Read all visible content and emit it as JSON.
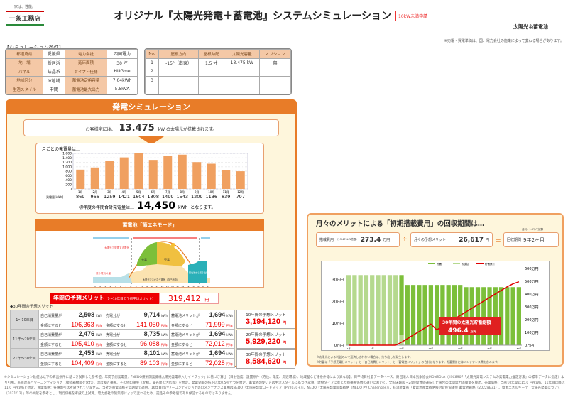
{
  "logo": {
    "tagline": "家は、性能。",
    "name": "一条工務店",
    "colors": [
      "#cc0000",
      "#2a8a3a"
    ]
  },
  "header": {
    "title": "オリジナル『太陽光発電＋蓄電池』システムシミュレーション",
    "badge": "10kW未満申請",
    "subtitle": "太陽光＆蓄電池",
    "note": "※売電・買電単価は、国、電力会社の施策によって変わる場合があります。"
  },
  "conditions": {
    "heading": "【シミュレーション条件】",
    "rows": [
      [
        "都道府県",
        "愛媛県",
        "電力会社",
        "四国電力"
      ],
      [
        "地　域",
        "新居浜",
        "延床面積",
        "30 坪"
      ],
      [
        "パネル",
        "結晶系",
        "タイプ・仕様",
        "HUGme"
      ],
      [
        "地域区分",
        "Ⅳ地域",
        "蓄電池定格容量",
        "7.04kWh"
      ],
      [
        "生活スタイル",
        "中間",
        "蓄電池最大出力",
        "5.5kVA"
      ]
    ],
    "roof_headers": [
      "No.",
      "屋根方向",
      "屋根勾配",
      "太陽光容量",
      "オプション"
    ],
    "roof_rows": [
      [
        "1",
        "-15°（南東）",
        "1.5 寸",
        "13.475 kW",
        "無"
      ],
      [
        "2",
        "",
        "",
        "",
        ""
      ],
      [
        "3",
        "",
        "",
        "",
        ""
      ],
      [
        "",
        "",
        "",
        "",
        ""
      ]
    ]
  },
  "sim": {
    "title": "発電シミュレーション",
    "cust_pre": "お客様宅には、",
    "capacity": "13.475",
    "cust_unit": "kW",
    "cust_post": "の太陽光が搭載されます。",
    "annual_pre": "初年度の年間合計発電量は…",
    "annual": "14,450",
    "annual_unit": "kWh",
    "annual_post": "となります。"
  },
  "chart_data": {
    "type": "bar",
    "title": "月ごとの発電量は…",
    "row_label": "発電量[kWh]",
    "categories": [
      "1月",
      "2月",
      "3月",
      "4月",
      "5月",
      "6月",
      "7月",
      "8月",
      "9月",
      "10月",
      "11月",
      "12月"
    ],
    "values": [
      869,
      966,
      1259,
      1421,
      1604,
      1308,
      1499,
      1543,
      1209,
      1136,
      839,
      797
    ],
    "ylim": [
      0,
      1600
    ],
    "yticks": [
      "0",
      "200",
      "400",
      "600",
      "800",
      "1,000",
      "1,200",
      "1,400",
      "1,600"
    ],
    "color": "#f0a060"
  },
  "battery": {
    "title": "蓄電池「節エネモード」",
    "labels": {
      "solar": "太陽光で発電する電気",
      "charge": "充電",
      "sell": "売電",
      "use": "使う電気の量",
      "day": "太陽光でまかなう電気（自己消費）",
      "night": "蓄電池から使う電気"
    },
    "hours": [
      "1",
      "2",
      "3",
      "4",
      "5",
      "6",
      "7",
      "8",
      "9",
      "10",
      "11",
      "12",
      "13",
      "14",
      "15",
      "16",
      "17",
      "18",
      "19",
      "20",
      "21",
      "22",
      "23"
    ]
  },
  "merit": {
    "label": "年間の予想メリット",
    "label_note": "（1〜10年目の予想平均メリット）",
    "value": "319,412",
    "unit": "円",
    "section": "◆30年間の予想メリット",
    "self_label": "自己消費量が",
    "sell_label": "売電分が",
    "batt_label": "蓄電池メリットが",
    "yen_label": "金額にすると",
    "kwh": "kWh",
    "yen_unit": "円/年",
    "periods": [
      {
        "name": "1〜10年目",
        "self": "2,508",
        "self_yen": "106,363",
        "sell": "9,714",
        "sell_yen": "141,050",
        "batt": "1,694",
        "batt_yen": "71,999",
        "total_label": "10年間の予想メリット",
        "total": "3,194,120"
      },
      {
        "name": "11年〜20年目",
        "self": "2,476",
        "self_yen": "105,410",
        "sell": "8,735",
        "sell_yen": "96,088",
        "batt": "1,694",
        "batt_yen": "72,012",
        "total_label": "20年間の予想メリット",
        "total": "5,929,220"
      },
      {
        "name": "21年〜30年目",
        "self": "2,453",
        "self_yen": "104,409",
        "sell": "8,101",
        "sell_yen": "89,103",
        "batt": "1,694",
        "batt_yen": "72,028",
        "total_label": "30年間の予想メリット",
        "total": "8,584,620"
      }
    ],
    "total_unit": "円"
  },
  "payback": {
    "title": "月々のメリットによる「初期搭載費用」の回収期間は…",
    "cost_label": "搭載費用",
    "cost_note": "（13.475kW搭載）",
    "cost": "273.4",
    "cost_unit": "万円",
    "plus": "÷",
    "monthly_label": "月々の予想メリット",
    "monthly": "26,617",
    "monthly_unit": "円",
    "eq": "＝",
    "period_label": "回収期間",
    "period": "9年2ヶ月",
    "small_note": "金利：1.0％で試算",
    "chart_data": {
      "type": "bar+line",
      "legend": [
        "貯蓄",
        "お支払",
        "貯蓄累計"
      ],
      "colors": [
        "#7cbf3a",
        "#b5d98e",
        "#e00000"
      ],
      "x": [
        1,
        2,
        3,
        4,
        5,
        6,
        7,
        8,
        9,
        10,
        11,
        12,
        13,
        14,
        15,
        16,
        17,
        18,
        19,
        20,
        21,
        22,
        23,
        24,
        25,
        26,
        27,
        28,
        29,
        30
      ],
      "xticks": [
        "1年",
        "5年",
        "10年",
        "15年",
        "20年",
        "25年",
        "30年"
      ],
      "savings": [
        0,
        0,
        0,
        0,
        0,
        0,
        0,
        0,
        0,
        27.5,
        27.5,
        27.5,
        27.5,
        27.5,
        27.5,
        27.5,
        27.5,
        27.5,
        27.5,
        27.5,
        26.5,
        26.5,
        26.5,
        26.5,
        26.5,
        26.5,
        26.5,
        26.5,
        26.5,
        26.5
      ],
      "payment": [
        32,
        32,
        32,
        32,
        32,
        32,
        32,
        32,
        32,
        4.5,
        0,
        0,
        0,
        0,
        0,
        0,
        0,
        0,
        0,
        0,
        0,
        0,
        0,
        0,
        0,
        0,
        0,
        0,
        0,
        0
      ],
      "cumulative": [
        0,
        0,
        0,
        0,
        0,
        0,
        0,
        0,
        0,
        23,
        51,
        79,
        107,
        135,
        165,
        120,
        148,
        176,
        205,
        233,
        261,
        289,
        317,
        345,
        373,
        401,
        429,
        457,
        480,
        496.4
      ],
      "ylim_left": [
        0,
        35
      ],
      "yticks_left": [
        "0万円",
        "10万円",
        "20万円",
        "30万円"
      ],
      "ylim_right": [
        0,
        600
      ],
      "yticks_right": [
        "0万円",
        "100万円",
        "200万円",
        "300万円",
        "400万円",
        "500万円",
        "600万円"
      ],
      "callout": {
        "label": "30年間の太陽光貯蓄総額",
        "value": "496.4",
        "unit": "万円"
      }
    },
    "notes": [
      "※太陽光による利益のみで返済しきれない場合は、持ち出しが発生します。",
      "※貯蓄は「予想売電分メリット」と「自己消費分メリット」と「蓄電池メリット」の合計になります。貯蓄累計にはメンテナンス費を含みます。"
    ]
  },
  "footer": "※シミュレーション数値は以下の算出条件に基づき試算した参考値。年間予想発電量：「NEDO技術開発機構太陽光発電導入ガイドブック」に基づき算出【日射強度、設置条件（方位、角度、周辺環境）、地域差など諸条件等により異なる】。日平均日射量データベース：財団法人日本気象協会MONSOLA（JISC8907「太陽光発電システムの発電電力推定方法」の標準データに指定）より引用。系統連系パワーコンディショナ（接続箱機能を含む）、温度差と損失、その他の損失（配線、受光面の汚れ等）を想定。発電効率の低下は年0.5％ずつを想定。蓄電池の使い方は生活スタイルに基づき試算、建物タイプに準じた熱損失係数の違いにおいて、全館床暖房・24時間連続運転した場合の年間電力消費量を算出。売電価格：当初10年間は15.0 円/kWh、11年目以降は 11.0 円/kWhと想定。買電価格：各種割引は考慮されていません。当社の買電価格を全期間で適用。16年目のパワーコンディショナ等のメンテナンス費用はNEDO「太陽光発電ロードマップ（PV2030+）」、NEDO「太陽光発電開発戦略（NEDO PV Challenges）」、経済産業省「蓄電池産業戦略検討官民協議会 蓄電池戦略（2022/8/31）」、資源エネルギー庁「太陽光発電について（2021/12）」等の文献を参考とし、現行価格を考慮の上試算。電力会社の施策等によって変わるため、記品みの参考値であり保証するものではありません。"
}
